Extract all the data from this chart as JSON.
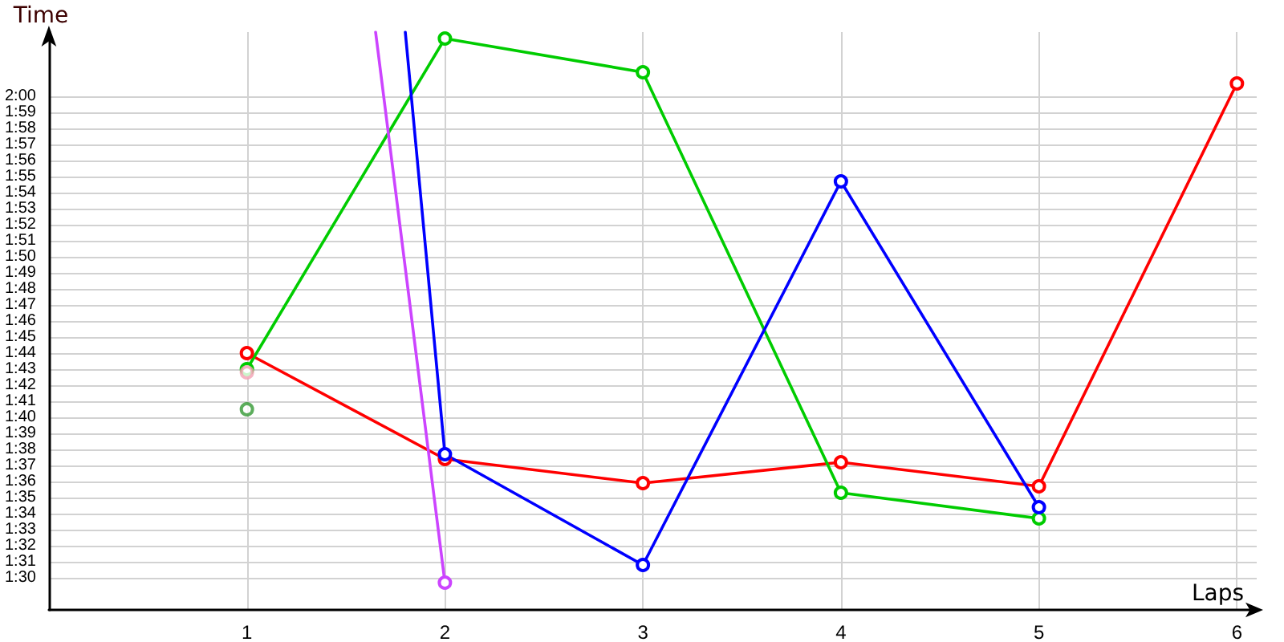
{
  "chart_data": {
    "type": "line",
    "xlabel": "Laps",
    "ylabel": "Time",
    "x": [
      1,
      2,
      3,
      4,
      5,
      6
    ],
    "xlim": [
      0,
      6.1
    ],
    "xticks": [
      1,
      2,
      3,
      4,
      5,
      6
    ],
    "ylim": [
      88,
      124
    ],
    "yticks": [
      {
        "value": 90,
        "label": "1:30"
      },
      {
        "value": 91,
        "label": "1:31"
      },
      {
        "value": 92,
        "label": "1:32"
      },
      {
        "value": 93,
        "label": "1:33"
      },
      {
        "value": 94,
        "label": "1:34"
      },
      {
        "value": 95,
        "label": "1:35"
      },
      {
        "value": 96,
        "label": "1:36"
      },
      {
        "value": 97,
        "label": "1:37"
      },
      {
        "value": 98,
        "label": "1:38"
      },
      {
        "value": 99,
        "label": "1:39"
      },
      {
        "value": 100,
        "label": "1:40"
      },
      {
        "value": 101,
        "label": "1:41"
      },
      {
        "value": 102,
        "label": "1:42"
      },
      {
        "value": 103,
        "label": "1:43"
      },
      {
        "value": 104,
        "label": "1:44"
      },
      {
        "value": 105,
        "label": "1:45"
      },
      {
        "value": 106,
        "label": "1:46"
      },
      {
        "value": 107,
        "label": "1:47"
      },
      {
        "value": 108,
        "label": "1:48"
      },
      {
        "value": 109,
        "label": "1:49"
      },
      {
        "value": 110,
        "label": "1:50"
      },
      {
        "value": 111,
        "label": "1:51"
      },
      {
        "value": 112,
        "label": "1:52"
      },
      {
        "value": 113,
        "label": "1:53"
      },
      {
        "value": 114,
        "label": "1:54"
      },
      {
        "value": 115,
        "label": "1:55"
      },
      {
        "value": 116,
        "label": "1:56"
      },
      {
        "value": 117,
        "label": "1:57"
      },
      {
        "value": 118,
        "label": "1:58"
      },
      {
        "value": 119,
        "label": "1:59"
      },
      {
        "value": 120,
        "label": "2:00"
      }
    ],
    "grid": true,
    "marker": "circle",
    "series": [
      {
        "color": "#ff0000",
        "values": [
          104,
          97.4,
          95.9,
          97.2,
          95.7,
          120.8
        ]
      },
      {
        "color": "#00cc00",
        "x": [
          1,
          2,
          3,
          4,
          5
        ],
        "values": [
          103,
          123.6,
          121.5,
          95.3,
          93.7
        ]
      },
      {
        "color": "#0000ff",
        "x": [
          1.8,
          2,
          3,
          4,
          5
        ],
        "values": [
          124,
          97.7,
          90.8,
          114.7,
          94.4
        ]
      },
      {
        "color": "#cc44ff",
        "x": [
          1.65,
          2
        ],
        "values": [
          124,
          89.7
        ]
      },
      {
        "type": "scatter",
        "color": "#339933",
        "x": [
          1
        ],
        "values": [
          100.5
        ]
      },
      {
        "type": "scatter",
        "color": "#f4a0b4",
        "x": [
          1
        ],
        "values": [
          102.8
        ]
      }
    ]
  }
}
